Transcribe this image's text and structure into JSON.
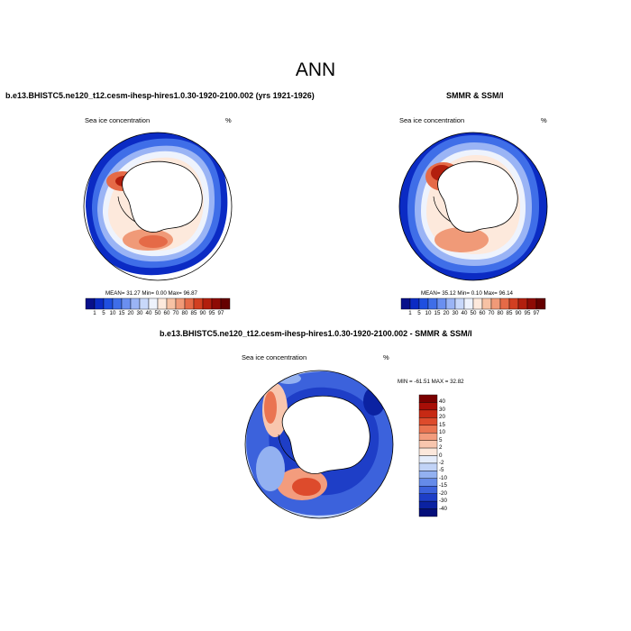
{
  "main_title": "ANN",
  "panels": {
    "model": {
      "title": "b.e13.BHISTC5.ne120_t12.cesm-ihesp-hires1.0.30-1920-2100.002 (yrs 1921-1926)",
      "left_label": "Sea ice concentration",
      "right_label": "%",
      "stats": "MEAN=  31.27  Min=   0.00  Max=  96.87"
    },
    "obs": {
      "title": "SMMR & SSM/I",
      "left_label": "Sea ice concentration",
      "right_label": "%",
      "stats": "MEAN=  35.12  Min=   0.10  Max=  96.14"
    },
    "diff": {
      "title": "b.e13.BHISTC5.ne120_t12.cesm-ihesp-hires1.0.30-1920-2100.002 - SMMR & SSM/I",
      "left_label": "Sea ice concentration",
      "right_label": "%",
      "stats": "MIN = -61.51 MAX =  32.82"
    }
  },
  "colorbar_concentration": {
    "labels": [
      "1",
      "5",
      "10",
      "15",
      "20",
      "30",
      "40",
      "50",
      "60",
      "70",
      "80",
      "85",
      "90",
      "95",
      "97"
    ],
    "colors": [
      "#08108a",
      "#0b2bc4",
      "#1f4fe0",
      "#3f6ee8",
      "#6a8ff0",
      "#9ab4f5",
      "#c8d8fa",
      "#eef3fd",
      "#fde9dc",
      "#f7c2a4",
      "#f09a78",
      "#e56a47",
      "#d23f21",
      "#b21f0e",
      "#8e0b05",
      "#650000"
    ]
  },
  "colorbar_difference": {
    "labels": [
      "40",
      "30",
      "20",
      "15",
      "10",
      "5",
      "2",
      "0",
      "-2",
      "-5",
      "-10",
      "-15",
      "-20",
      "-30",
      "-40"
    ],
    "colors": [
      "#7a0000",
      "#a80e07",
      "#c72a14",
      "#dd4b2c",
      "#ea7451",
      "#f39c7d",
      "#f8c6ae",
      "#fce8dc",
      "#e4ecfb",
      "#c1d3f7",
      "#93b1f1",
      "#658be9",
      "#3c62dc",
      "#1e3ec7",
      "#0b22a2",
      "#050f7a"
    ]
  }
}
